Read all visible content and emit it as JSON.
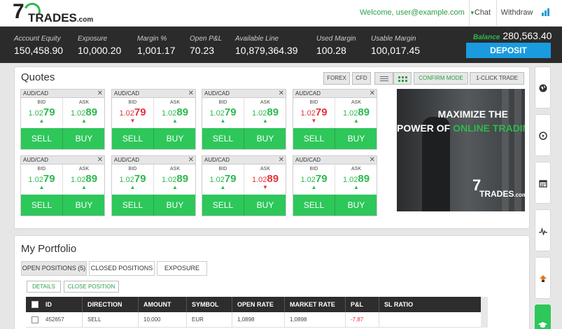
{
  "header": {
    "logo_number": "7",
    "logo_word": "TRADES",
    "logo_suffix": ".com",
    "welcome": "Welcome, user@example.com",
    "nav": {
      "chat": "Chat",
      "withdraw": "Withdraw"
    },
    "icons": {
      "dropdown": "chevron-down-icon",
      "signal": "signal-bars-icon"
    }
  },
  "stats": [
    {
      "label": "Account Equity",
      "value": "150,458.90"
    },
    {
      "label": "Exposure",
      "value": "10,000.20"
    },
    {
      "label": "Margin %",
      "value": "1,001.17"
    },
    {
      "label": "Open P&L",
      "value": "70.23"
    },
    {
      "label": "Available Line",
      "value": "10,879,364.39"
    },
    {
      "label": "Used Margin",
      "value": "100.28"
    },
    {
      "label": "Usable Margin",
      "value": "100,017.45"
    }
  ],
  "balance": {
    "label": "Balance",
    "value": "280,563.40"
  },
  "deposit_label": "DEPOSIT",
  "quotes": {
    "title": "Quotes",
    "filters": {
      "forex": "FOREX",
      "cfd": "CFD"
    },
    "modes": {
      "confirm": "CONFIRM MODE",
      "one_click": "1-CLICK TRADE"
    },
    "bid_label": "BID",
    "ask_label": "ASK",
    "sell_label": "SELL",
    "buy_label": "BUY",
    "close_glyph": "✕",
    "cards": [
      {
        "pair": "AUD/CAD",
        "bid_prefix": "1.02",
        "bid_big": "79",
        "bid_dir": "up",
        "ask_prefix": "1.02",
        "ask_big": "89",
        "ask_dir": "up"
      },
      {
        "pair": "AUD/CAD",
        "bid_prefix": "1.02",
        "bid_big": "79",
        "bid_dir": "down",
        "ask_prefix": "1.02",
        "ask_big": "89",
        "ask_dir": "up"
      },
      {
        "pair": "AUD/CAD",
        "bid_prefix": "1.02",
        "bid_big": "79",
        "bid_dir": "up",
        "ask_prefix": "1.02",
        "ask_big": "89",
        "ask_dir": "up"
      },
      {
        "pair": "AUD/CAD",
        "bid_prefix": "1.02",
        "bid_big": "79",
        "bid_dir": "down",
        "ask_prefix": "1.02",
        "ask_big": "89",
        "ask_dir": "up"
      },
      {
        "pair": "AUD/CAD",
        "bid_prefix": "1.02",
        "bid_big": "79",
        "bid_dir": "up",
        "ask_prefix": "1.02",
        "ask_big": "89",
        "ask_dir": "up"
      },
      {
        "pair": "AUD/CAD",
        "bid_prefix": "1.02",
        "bid_big": "79",
        "bid_dir": "up",
        "ask_prefix": "1.02",
        "ask_big": "89",
        "ask_dir": "up"
      },
      {
        "pair": "AUD/CAD",
        "bid_prefix": "1.02",
        "bid_big": "79",
        "bid_dir": "up",
        "ask_prefix": "1.02",
        "ask_big": "89",
        "ask_dir": "down"
      },
      {
        "pair": "AUD/CAD",
        "bid_prefix": "1.02",
        "bid_big": "79",
        "bid_dir": "up",
        "ask_prefix": "1.02",
        "ask_big": "89",
        "ask_dir": "up"
      }
    ]
  },
  "ad": {
    "line1": "MAXIMIZE THE",
    "line2_prefix": "POWER OF ",
    "line2_highlight": "ONLINE TRADING",
    "logo_number": "7",
    "logo_word": "TRADES",
    "logo_suffix": ".com"
  },
  "rail": {
    "icons": [
      "globe-icon",
      "play-icon",
      "calendar-icon",
      "pulse-chart-icon",
      "trend-arrow-icon",
      "graduation-cap-icon"
    ]
  },
  "portfolio": {
    "title": "My Portfolio",
    "tabs": [
      "OPEN POSITIONS (5)",
      "CLOSED POSITIONS",
      "EXPOSURE"
    ],
    "actions": {
      "details": "DETAILS",
      "close_position": "CLOSE POSITION"
    },
    "columns": [
      "ID",
      "DIRECTION",
      "AMOUNT",
      "SYMBOL",
      "OPEN RATE",
      "MARKET RATE",
      "P&L",
      "SL RATIO"
    ],
    "rows": [
      {
        "id": "452657",
        "direction": "SELL",
        "amount": "10,000",
        "symbol": "EUR",
        "open_rate": "1,0898",
        "market_rate": "1,0898",
        "pnl": "-7,87",
        "sl_ratio": ""
      }
    ]
  },
  "colors": {
    "green": "#2db84c",
    "button_green": "#2ec75a",
    "red": "#e5303b",
    "blue": "#1a9be0",
    "dark": "#2b2b2b"
  }
}
